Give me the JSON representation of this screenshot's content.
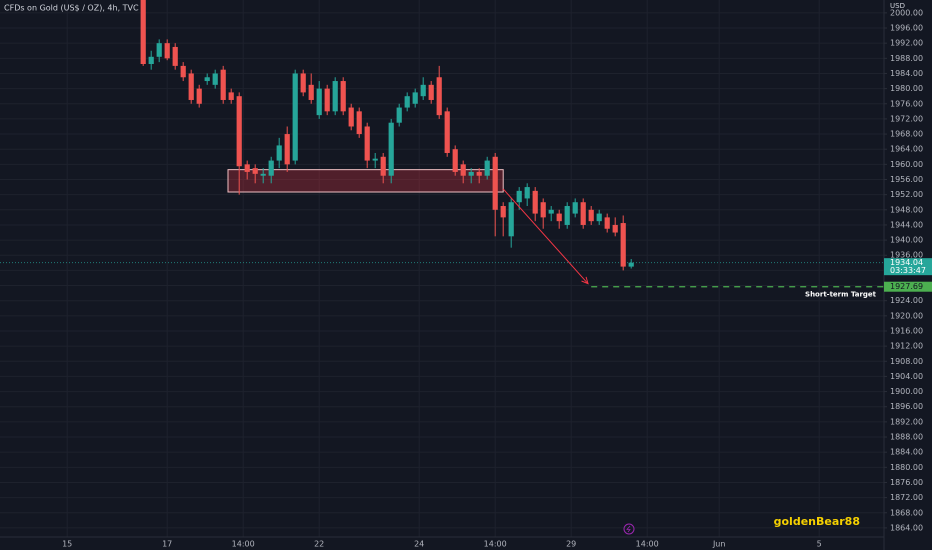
{
  "chart_data": {
    "type": "candlestick",
    "title": "CFDs on Gold (US$ / OZ), 4h, TVC",
    "currency": "USD",
    "watermark": "goldenBear88",
    "up_color": "#26a69a",
    "down_color": "#ef5350",
    "grid": true,
    "ylim": [
      1861.6,
      2003.4
    ],
    "xlim": [
      -17.9,
      92.6
    ],
    "yticks": [
      {
        "value": 2000,
        "label": "2000.00"
      },
      {
        "value": 1996,
        "label": "1996.00"
      },
      {
        "value": 1992,
        "label": "1992.00"
      },
      {
        "value": 1988,
        "label": "1988.00"
      },
      {
        "value": 1984,
        "label": "1984.00"
      },
      {
        "value": 1980,
        "label": "1980.00"
      },
      {
        "value": 1976,
        "label": "1976.00"
      },
      {
        "value": 1972,
        "label": "1972.00"
      },
      {
        "value": 1968,
        "label": "1968.00"
      },
      {
        "value": 1964,
        "label": "1964.00"
      },
      {
        "value": 1960,
        "label": "1960.00"
      },
      {
        "value": 1956,
        "label": "1956.00"
      },
      {
        "value": 1952,
        "label": "1952.00"
      },
      {
        "value": 1948,
        "label": "1948.00"
      },
      {
        "value": 1944,
        "label": "1944.00"
      },
      {
        "value": 1940,
        "label": "1940.00"
      },
      {
        "value": 1936,
        "label": "1936.00"
      },
      {
        "value": 1932,
        "label": "1932.00"
      },
      {
        "value": 1928,
        "label": "1928.00"
      },
      {
        "value": 1924,
        "label": "1924.00"
      },
      {
        "value": 1920,
        "label": "1920.00"
      },
      {
        "value": 1916,
        "label": "1916.00"
      },
      {
        "value": 1912,
        "label": "1912.00"
      },
      {
        "value": 1908,
        "label": "1908.00"
      },
      {
        "value": 1904,
        "label": "1904.00"
      },
      {
        "value": 1900,
        "label": "1900.00"
      },
      {
        "value": 1896,
        "label": "1896.00"
      },
      {
        "value": 1892,
        "label": "1892.00"
      },
      {
        "value": 1888,
        "label": "1888.00"
      },
      {
        "value": 1884,
        "label": "1884.00"
      },
      {
        "value": 1880,
        "label": "1880.00"
      },
      {
        "value": 1876,
        "label": "1876.00"
      },
      {
        "value": 1872,
        "label": "1872.00"
      },
      {
        "value": 1868,
        "label": "1868.00"
      },
      {
        "value": 1864,
        "label": "1864.00"
      }
    ],
    "xticks": [
      {
        "value": -9.5,
        "label": "15"
      },
      {
        "value": 3,
        "label": "17"
      },
      {
        "value": 12.5,
        "label": "14:00"
      },
      {
        "value": 22,
        "label": "22"
      },
      {
        "value": 34.5,
        "label": "24"
      },
      {
        "value": 44,
        "label": "14:00"
      },
      {
        "value": 53.5,
        "label": "29"
      },
      {
        "value": 63,
        "label": "14:00"
      },
      {
        "value": 72,
        "label": "Jun"
      },
      {
        "value": 84.5,
        "label": "5"
      }
    ],
    "candles": {
      "open": [
        2004,
        1986.5,
        1988.4,
        1992,
        1991,
        1986,
        1984,
        1980,
        1982,
        1981,
        1985,
        1979,
        1978,
        1960,
        1959,
        1957,
        1957,
        1961,
        1968,
        1961,
        1984,
        1981,
        1973,
        1980,
        1974,
        1982,
        1975,
        1974,
        1970,
        1961,
        1962,
        1957,
        1971,
        1975,
        1976,
        1978,
        1981,
        1983,
        1974,
        1964,
        1960,
        1957,
        1958,
        1957,
        1962,
        1949,
        1941,
        1950,
        1951,
        1953,
        1950,
        1947,
        1947,
        1944,
        1947,
        1950,
        1948,
        1945,
        1946,
        1944,
        1944.5,
        1933
      ],
      "high": [
        2006,
        1990,
        1993,
        1993,
        1992,
        1987,
        1985,
        1981,
        1984,
        1985,
        1986,
        1980,
        1979,
        1961,
        1960,
        1959,
        1962,
        1967,
        1970,
        1985,
        1985,
        1984,
        1982,
        1981,
        1983,
        1983,
        1976,
        1975,
        1971,
        1963,
        1963,
        1972,
        1976,
        1979,
        1980,
        1983,
        1982,
        1986,
        1975,
        1965,
        1961,
        1959,
        1959,
        1962,
        1963,
        1950,
        1951,
        1954,
        1955,
        1954,
        1951,
        1949,
        1948,
        1950,
        1951,
        1951,
        1949,
        1948,
        1947,
        1946,
        1946.5,
        1935
      ],
      "low": [
        1986,
        1985,
        1987,
        1987.5,
        1985,
        1982,
        1976,
        1975,
        1981,
        1980,
        1976,
        1976,
        1952,
        1956,
        1955,
        1955,
        1955,
        1959,
        1958,
        1960,
        1978,
        1976,
        1972,
        1973,
        1973,
        1973,
        1969,
        1967,
        1959,
        1959,
        1955,
        1955,
        1970,
        1974,
        1975,
        1977,
        1976,
        1972,
        1962,
        1957,
        1955,
        1955,
        1955,
        1956,
        1941,
        1941,
        1938,
        1948,
        1949,
        1945,
        1943,
        1945,
        1943,
        1943,
        1946,
        1943,
        1944,
        1944,
        1942,
        1941,
        1932,
        1932.5
      ],
      "close": [
        1986.5,
        1988.4,
        1992,
        1988,
        1986,
        1983,
        1977,
        1976,
        1983,
        1984,
        1977,
        1977,
        1959.5,
        1958,
        1957.5,
        1957.5,
        1961,
        1965,
        1960,
        1984,
        1979,
        1977,
        1980,
        1974,
        1982,
        1974,
        1970,
        1968,
        1961,
        1961.5,
        1957,
        1971,
        1975,
        1978,
        1979,
        1981,
        1977,
        1973,
        1963,
        1958,
        1957,
        1958,
        1957,
        1961,
        1948,
        1946,
        1950,
        1953,
        1954,
        1947,
        1946,
        1948,
        1945,
        1949,
        1950,
        1944,
        1945,
        1947,
        1943,
        1942,
        1933,
        1934.04
      ]
    },
    "zone": {
      "x": [
        10.6,
        45
      ],
      "y": [
        1952.7,
        1958.6
      ]
    },
    "arrow": {
      "x": [
        45,
        55.6
      ],
      "y": [
        1953.5,
        1928.5
      ]
    },
    "current_price": 1934.04,
    "countdown": "03:33:47",
    "target": {
      "value": 1927.69,
      "start": 56,
      "label": "Short-term Target"
    }
  }
}
